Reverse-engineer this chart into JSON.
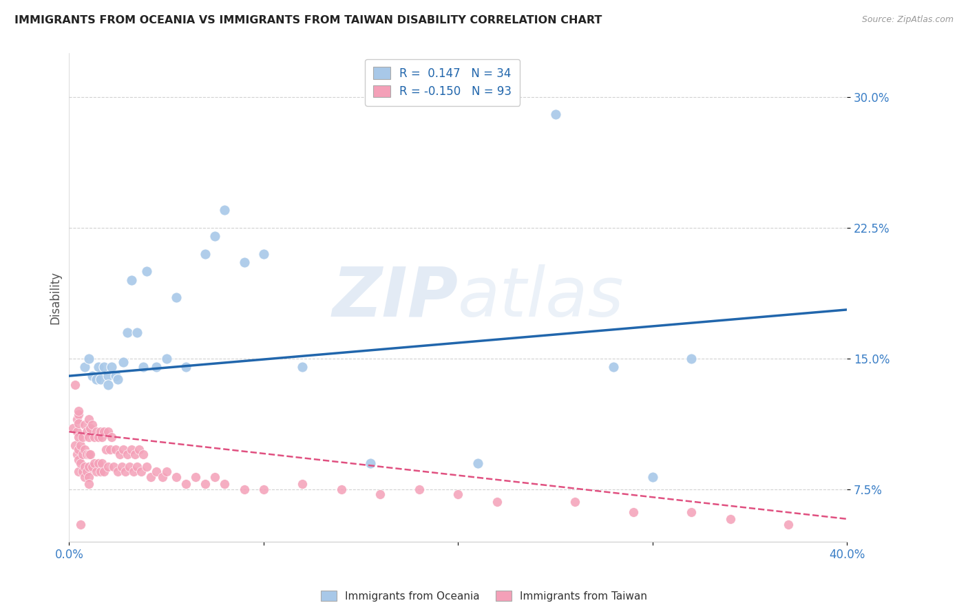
{
  "title": "IMMIGRANTS FROM OCEANIA VS IMMIGRANTS FROM TAIWAN DISABILITY CORRELATION CHART",
  "source": "Source: ZipAtlas.com",
  "ylabel": "Disability",
  "ytick_values": [
    0.075,
    0.15,
    0.225,
    0.3
  ],
  "xlim": [
    0.0,
    0.4
  ],
  "ylim": [
    0.045,
    0.325
  ],
  "watermark": "ZIPatlas",
  "oceania_color": "#a8c8e8",
  "taiwan_color": "#f4a0b8",
  "oceania_line_color": "#2166ac",
  "taiwan_line_color": "#e05080",
  "legend_r_oceania": "R =  0.147",
  "legend_n_oceania": "N = 34",
  "legend_r_taiwan": "R = -0.150",
  "legend_n_taiwan": "N = 93",
  "oceania_x": [
    0.008,
    0.01,
    0.012,
    0.014,
    0.015,
    0.016,
    0.018,
    0.02,
    0.02,
    0.022,
    0.024,
    0.025,
    0.028,
    0.03,
    0.032,
    0.035,
    0.038,
    0.04,
    0.045,
    0.05,
    0.055,
    0.06,
    0.07,
    0.075,
    0.08,
    0.09,
    0.1,
    0.12,
    0.155,
    0.21,
    0.25,
    0.28,
    0.3,
    0.32
  ],
  "oceania_y": [
    0.145,
    0.15,
    0.14,
    0.138,
    0.145,
    0.138,
    0.145,
    0.14,
    0.135,
    0.145,
    0.14,
    0.138,
    0.148,
    0.165,
    0.195,
    0.165,
    0.145,
    0.2,
    0.145,
    0.15,
    0.185,
    0.145,
    0.21,
    0.22,
    0.235,
    0.205,
    0.21,
    0.145,
    0.09,
    0.09,
    0.29,
    0.145,
    0.082,
    0.15
  ],
  "taiwan_x": [
    0.002,
    0.003,
    0.004,
    0.004,
    0.004,
    0.005,
    0.005,
    0.005,
    0.005,
    0.005,
    0.005,
    0.006,
    0.006,
    0.007,
    0.007,
    0.007,
    0.008,
    0.008,
    0.008,
    0.008,
    0.009,
    0.009,
    0.009,
    0.01,
    0.01,
    0.01,
    0.01,
    0.01,
    0.01,
    0.011,
    0.011,
    0.012,
    0.012,
    0.013,
    0.013,
    0.014,
    0.014,
    0.015,
    0.015,
    0.016,
    0.016,
    0.017,
    0.017,
    0.018,
    0.018,
    0.019,
    0.02,
    0.02,
    0.021,
    0.022,
    0.023,
    0.024,
    0.025,
    0.026,
    0.027,
    0.028,
    0.029,
    0.03,
    0.031,
    0.032,
    0.033,
    0.034,
    0.035,
    0.036,
    0.037,
    0.038,
    0.04,
    0.042,
    0.045,
    0.048,
    0.05,
    0.055,
    0.06,
    0.065,
    0.07,
    0.075,
    0.08,
    0.09,
    0.1,
    0.12,
    0.14,
    0.16,
    0.18,
    0.2,
    0.22,
    0.26,
    0.29,
    0.32,
    0.34,
    0.37,
    0.003,
    0.005,
    0.006
  ],
  "taiwan_y": [
    0.11,
    0.1,
    0.108,
    0.095,
    0.115,
    0.118,
    0.105,
    0.098,
    0.092,
    0.085,
    0.113,
    0.1,
    0.09,
    0.105,
    0.095,
    0.085,
    0.112,
    0.098,
    0.088,
    0.082,
    0.108,
    0.095,
    0.085,
    0.115,
    0.105,
    0.095,
    0.088,
    0.082,
    0.078,
    0.11,
    0.095,
    0.112,
    0.088,
    0.105,
    0.09,
    0.108,
    0.085,
    0.105,
    0.09,
    0.108,
    0.085,
    0.105,
    0.09,
    0.108,
    0.085,
    0.098,
    0.108,
    0.088,
    0.098,
    0.105,
    0.088,
    0.098,
    0.085,
    0.095,
    0.088,
    0.098,
    0.085,
    0.095,
    0.088,
    0.098,
    0.085,
    0.095,
    0.088,
    0.098,
    0.085,
    0.095,
    0.088,
    0.082,
    0.085,
    0.082,
    0.085,
    0.082,
    0.078,
    0.082,
    0.078,
    0.082,
    0.078,
    0.075,
    0.075,
    0.078,
    0.075,
    0.072,
    0.075,
    0.072,
    0.068,
    0.068,
    0.062,
    0.062,
    0.058,
    0.055,
    0.135,
    0.12,
    0.055
  ],
  "oceania_trend_x": [
    0.0,
    0.4
  ],
  "oceania_trend_y": [
    0.14,
    0.178
  ],
  "taiwan_trend_x": [
    0.0,
    0.4
  ],
  "taiwan_trend_y": [
    0.108,
    0.058
  ],
  "background_color": "#ffffff",
  "grid_color": "#cccccc",
  "title_color": "#222222",
  "axis_label_color": "#555555",
  "ytick_color": "#3a7ec6",
  "xtick_color": "#3a7ec6",
  "legend_label_oceania": "Immigrants from Oceania",
  "legend_label_taiwan": "Immigrants from Taiwan"
}
